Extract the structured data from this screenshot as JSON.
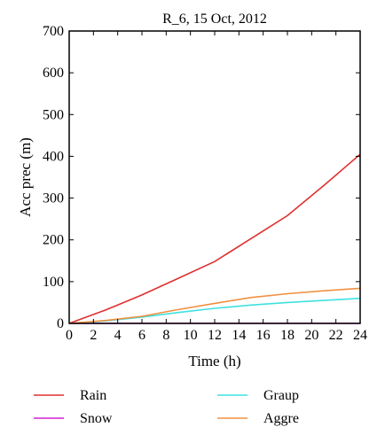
{
  "chart_data": {
    "type": "line",
    "title": "R_6, 15 Oct, 2012",
    "xlabel": "Time (h)",
    "ylabel": "Acc prec (m)",
    "xlim": [
      0,
      24
    ],
    "ylim": [
      0,
      700
    ],
    "xticks": [
      "0",
      "2",
      "4",
      "6",
      "8",
      "10",
      "12",
      "14",
      "16",
      "18",
      "20",
      "22",
      "24"
    ],
    "yticks": [
      "0",
      "100",
      "200",
      "300",
      "400",
      "500",
      "600",
      "700"
    ],
    "grid": false,
    "legend_position": "bottom",
    "series": [
      {
        "name": "Rain",
        "color": "#e03030",
        "x": [
          0,
          3,
          6,
          9,
          12,
          15,
          18,
          21,
          24
        ],
        "y": [
          0,
          32,
          68,
          108,
          148,
          203,
          258,
          330,
          405
        ]
      },
      {
        "name": "Snow",
        "color": "#d020d0",
        "x": [
          0,
          3,
          6,
          9,
          12,
          15,
          18,
          21,
          24
        ],
        "y": [
          0,
          0,
          0,
          0,
          0,
          0,
          0,
          0,
          0
        ]
      },
      {
        "name": "Graup",
        "color": "#40e0e0",
        "x": [
          0,
          3,
          6,
          9,
          12,
          15,
          18,
          21,
          24
        ],
        "y": [
          0,
          6,
          15,
          26,
          36,
          44,
          50,
          55,
          60
        ]
      },
      {
        "name": "Aggre",
        "color": "#f09040",
        "x": [
          0,
          3,
          6,
          9,
          12,
          15,
          18,
          21,
          24
        ],
        "y": [
          0,
          7,
          17,
          33,
          48,
          62,
          71,
          78,
          84
        ]
      }
    ]
  }
}
